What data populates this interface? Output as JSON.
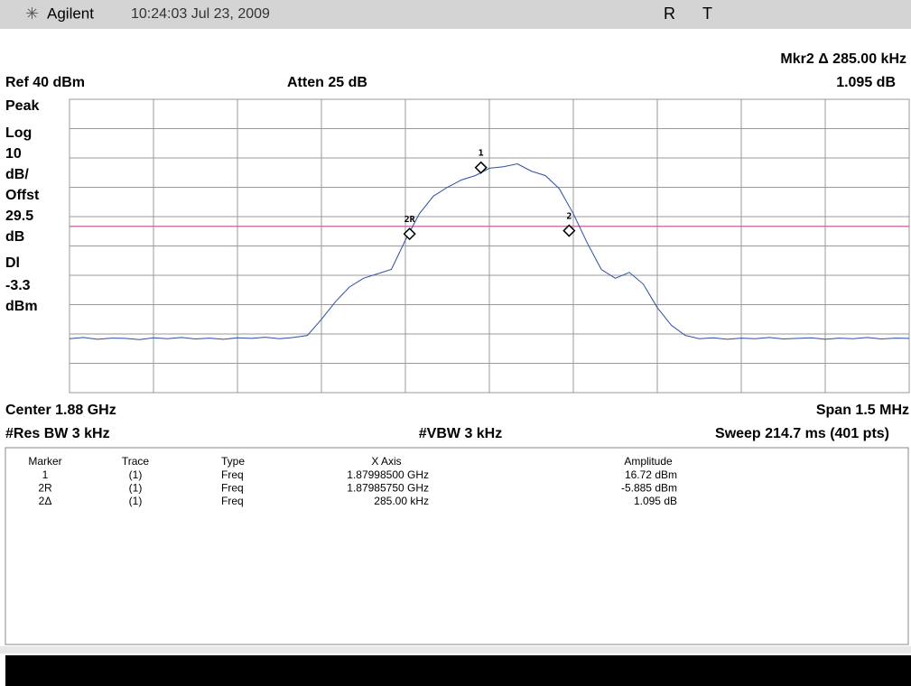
{
  "header": {
    "brand": "Agilent",
    "datetime": "10:24:03  Jul 23, 2009",
    "status": [
      "R",
      "T"
    ]
  },
  "annotations": {
    "marker_readout": "Mkr2 Δ  285.00 kHz",
    "ref": "Ref 40 dBm",
    "atten": "Atten 25 dB",
    "marker_amplitude": "1.095 dB"
  },
  "left_labels": [
    "Peak",
    "Log",
    "10",
    "dB/",
    "Offst",
    "29.5",
    "dB",
    "Dl",
    "-3.3",
    "dBm"
  ],
  "footer": {
    "center": "Center 1.88 GHz",
    "span": "Span 1.5 MHz",
    "rbw": "#Res BW 3 kHz",
    "vbw": "#VBW 3 kHz",
    "sweep": "Sweep 214.7 ms (401 pts)"
  },
  "marker_table": {
    "header": [
      "Marker",
      "Trace",
      "Type",
      "X Axis",
      "Amplitude"
    ],
    "rows": [
      [
        "1",
        "(1)",
        "Freq",
        "1.87998500 GHz",
        "16.72 dBm"
      ],
      [
        "2R",
        "(1)",
        "Freq",
        "1.87985750 GHz",
        "-5.885 dBm"
      ],
      [
        "2Δ",
        "(1)",
        "Freq",
        "285.00 kHz",
        "1.095 dB"
      ]
    ]
  },
  "chart_data": {
    "type": "line",
    "color": "#2b4fa0",
    "xlim": [
      1879.25,
      1880.75
    ],
    "xticks": [
      1879.25,
      1879.4,
      1879.55,
      1879.7,
      1879.85,
      1880.0,
      1880.15,
      1880.3,
      1880.45,
      1880.6,
      1880.75
    ],
    "ylim": [
      -60,
      40
    ],
    "yticks": [
      -60,
      -50,
      -40,
      -30,
      -20,
      -10,
      0,
      10,
      20,
      30,
      40
    ],
    "grid": true,
    "display_line": -3.3,
    "display_line_color": "#c0609a",
    "values": [
      -41.6,
      -41.2,
      -41.8,
      -41.4,
      -41.5,
      -41.9,
      -41.3,
      -41.6,
      -41.2,
      -41.7,
      -41.4,
      -41.8,
      -41.3,
      -41.5,
      -41.1,
      -41.6,
      -41.2,
      -40.5,
      -35,
      -29,
      -24,
      -21,
      -19.5,
      -18,
      -8,
      1,
      7,
      10,
      12.5,
      14,
      16.5,
      17,
      18,
      15.5,
      14,
      9.5,
      1,
      -9,
      -18,
      -21,
      -19,
      -23,
      -31,
      -37,
      -40.5,
      -41.6,
      -41.3,
      -41.8,
      -41.4,
      -41.6,
      -41.2,
      -41.7,
      -41.5,
      -41.3,
      -41.8,
      -41.4,
      -41.6,
      -41.2,
      -41.7,
      -41.4,
      -41.5
    ],
    "markers": [
      {
        "label": "1",
        "x": 1879.985,
        "y": 16.72
      },
      {
        "label": "2R",
        "x": 1879.8575,
        "y": -5.885
      },
      {
        "label": "2",
        "x": 1880.1425,
        "y": -4.79
      }
    ]
  }
}
